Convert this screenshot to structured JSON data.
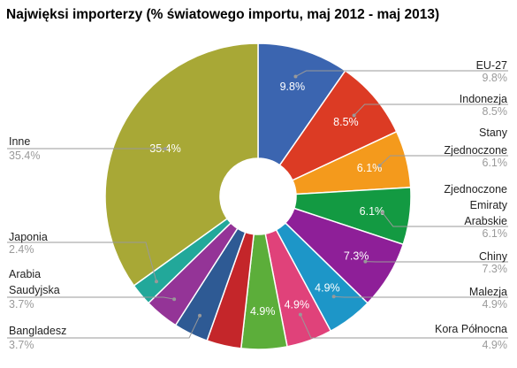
{
  "chart_data": {
    "type": "pie",
    "title": "Najwięksi importerzy (% światowego importu, maj 2012 - maj 2013)",
    "donut": true,
    "slices": [
      {
        "label": "EU-27",
        "value": 9.8,
        "display": "9.8%",
        "color": "#3b65b0",
        "inside": true
      },
      {
        "label": "Indonezja",
        "value": 8.5,
        "display": "8.5%",
        "color": "#dc3b24",
        "inside": true
      },
      {
        "label": "Stany Zjednoczone",
        "value": 6.1,
        "display": "6.1%",
        "color": "#f49a1c",
        "inside": true
      },
      {
        "label": "Zjednoczone Emiraty Arabskie",
        "value": 6.1,
        "display": "6.1%",
        "color": "#139a42",
        "inside": true
      },
      {
        "label": "Chiny",
        "value": 7.3,
        "display": "7.3%",
        "color": "#8e1f98",
        "inside": true
      },
      {
        "label": "Malezja",
        "value": 4.9,
        "display": "4.9%",
        "color": "#1d96c8",
        "inside": true
      },
      {
        "label": "Kora Północna",
        "value": 4.9,
        "display": "4.9%",
        "color": "#e0427a",
        "inside": true
      },
      {
        "label": "",
        "value": 4.9,
        "display": "4.9%",
        "color": "#5cae3a",
        "inside": true
      },
      {
        "label": "",
        "value": 3.7,
        "display": "",
        "color": "#c4262a",
        "inside": false
      },
      {
        "label": "Bangladesz",
        "value": 3.7,
        "display": "3.7%",
        "color": "#2e5a94",
        "inside": false
      },
      {
        "label": "Arabia Saudyjska",
        "value": 3.7,
        "display": "3.7%",
        "color": "#943497",
        "inside": false
      },
      {
        "label": "Japonia",
        "value": 2.4,
        "display": "2.4%",
        "color": "#22a89a",
        "inside": false
      },
      {
        "label": "Inne",
        "value": 35.4,
        "display": "35.4%",
        "color": "#a8a836",
        "inside": true
      }
    ]
  }
}
